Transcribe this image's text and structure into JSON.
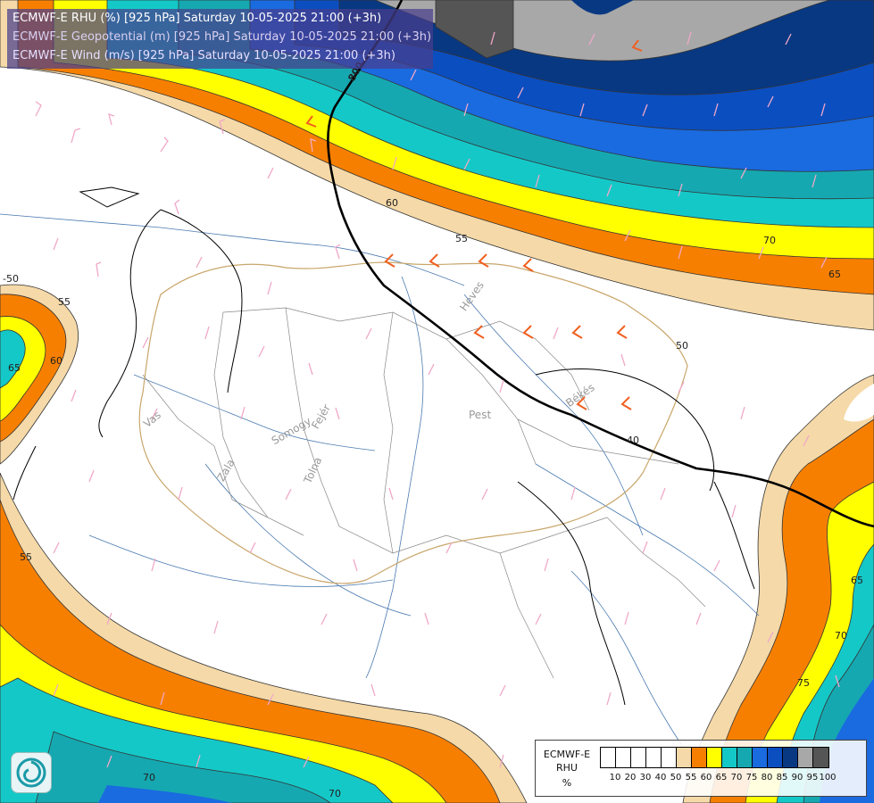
{
  "title": {
    "line1": "ECMWF-E RHU (%) [925 hPa] Saturday 10-05-2025 21:00 (+3h)",
    "line2": "ECMWF-E Geopotential (m) [925 hPa] Saturday 10-05-2025 21:00 (+3h)",
    "line3": "ECMWF-E Wind (m/s) [925 hPa] Saturday 10-05-2025 21:00 (+3h)"
  },
  "legend": {
    "model": "ECMWF-E",
    "variable": "RHU",
    "unit": "%",
    "ticks": [
      "10",
      "20",
      "30",
      "40",
      "50",
      "55",
      "60",
      "65",
      "70",
      "75",
      "80",
      "85",
      "90",
      "95",
      "100"
    ],
    "colors": [
      "#ffffff",
      "#ffffff",
      "#ffffff",
      "#ffffff",
      "#ffffff",
      "#f5d9a8",
      "#f77f00",
      "#ffff00",
      "#15c8c8",
      "#16a8b0",
      "#1a6ae0",
      "#0b4ec0",
      "#083882",
      "#a8a8a8",
      "#555555"
    ]
  },
  "place_names": {
    "heves": "Heves",
    "bekes": "Békés",
    "pest": "Pest",
    "vas": "Vas",
    "zala": "Zala",
    "somogy": "Somogy",
    "fejer": "Fejér",
    "tolna": "Tolna"
  },
  "contour_labels": {
    "c800": "800",
    "c60a": "60",
    "c55a": "55",
    "c70a": "70",
    "c65a": "65",
    "c50a": "50",
    "c40": "40",
    "c50b": "-50",
    "c55b": "55",
    "c60b": "60",
    "c65b": "65",
    "c55c": "55",
    "c65c": "65",
    "c70b": "70",
    "c75": "75",
    "c70c": "70",
    "c70d": "70"
  },
  "icons": {
    "logo": "ecmwf-swirl-icon"
  }
}
